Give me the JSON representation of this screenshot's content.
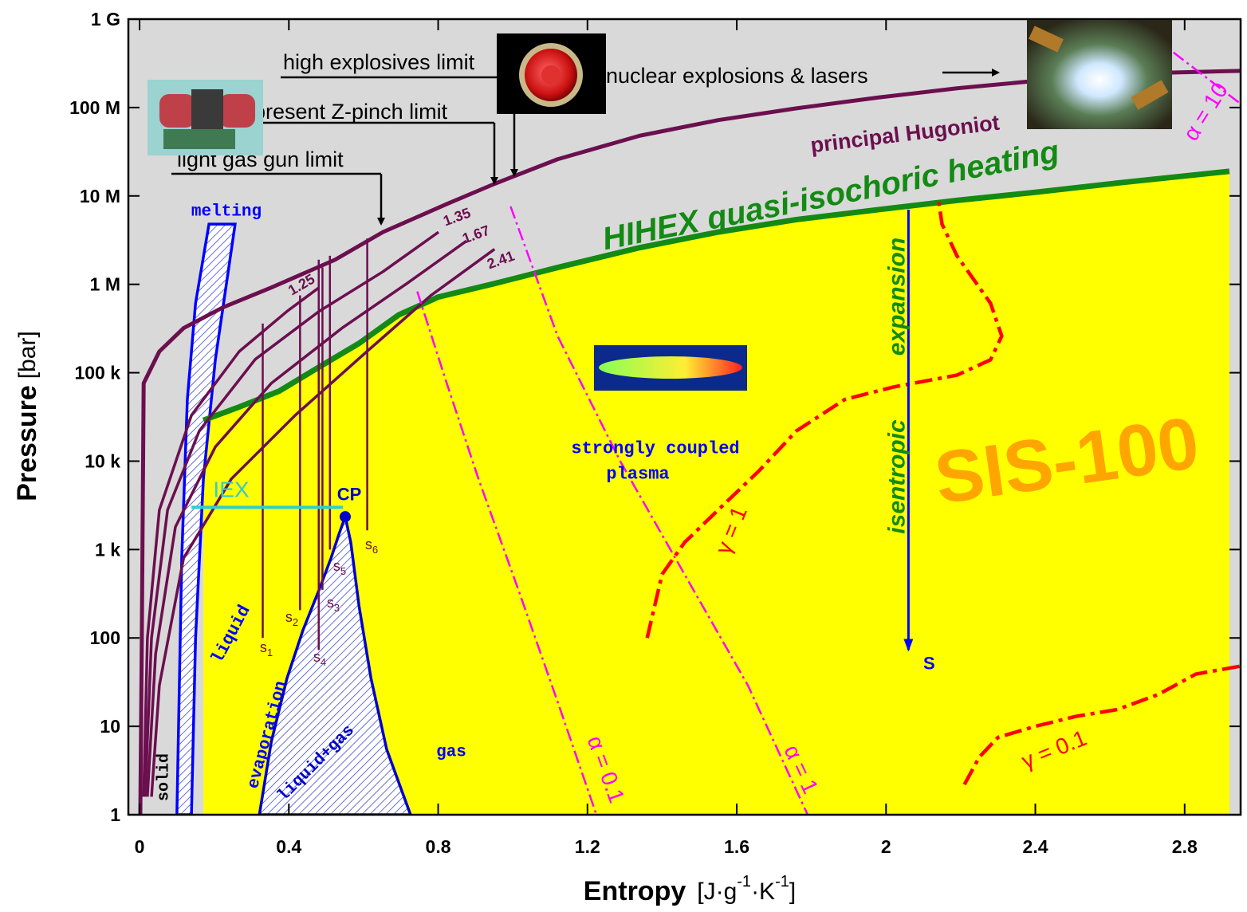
{
  "chart_data": {
    "type": "line",
    "x_label": [
      "Entropy",
      "[J·g",
      "-1",
      "·K",
      "-1",
      "]"
    ],
    "y_label": [
      "Pressure",
      "[bar]"
    ],
    "xlim": [
      -0.03,
      2.95
    ],
    "ylim": [
      1,
      1000000000
    ],
    "log_y": true,
    "xticks": [
      0,
      0.4,
      0.8,
      1.2,
      1.6,
      2,
      2.4,
      2.8
    ],
    "yticks": [
      1,
      10,
      100,
      {
        "value": 1000,
        "label": "1 k"
      },
      {
        "value": 10000,
        "label": "10 k"
      },
      {
        "value": 100000,
        "label": "100 k"
      },
      {
        "value": 1000000,
        "label": "1 M"
      },
      {
        "value": 10000000,
        "label": "10 M"
      },
      {
        "value": 100000000,
        "label": "100 M"
      },
      {
        "value": 1000000000,
        "label": "1 G"
      }
    ],
    "background": "#d9d9d9",
    "heating_region_color": "#ffff00",
    "series": [
      {
        "name": "principal Hugoniot",
        "color": "#6b0f4f",
        "x": [
          0.002,
          0.006,
          0.011,
          0.053,
          0.118,
          0.224,
          0.353,
          0.524,
          0.652,
          0.823,
          0.951,
          1.12,
          1.34,
          1.55,
          1.76,
          1.98,
          2.19,
          2.4,
          2.62,
          2.95
        ],
        "y": [
          1,
          100,
          76000,
          174000,
          320000,
          550000,
          920000,
          1900000,
          3900000,
          8100000,
          13700000,
          26000000,
          48000000,
          72000000,
          98000000,
          130000000,
          165000000,
          200000000,
          240000000,
          260000000
        ]
      },
      {
        "name": "HIHEX quasi-isochoric heating",
        "color": "#138a13",
        "x": [
          0.171,
          0.267,
          0.374,
          0.481,
          0.588,
          0.694,
          0.801,
          0.951,
          1.12,
          1.34,
          1.55,
          1.76,
          1.98,
          2.19,
          2.4,
          2.62,
          2.92
        ],
        "y": [
          29000,
          41000,
          62000,
          116000,
          215000,
          450000,
          720000,
          1020000,
          1550000,
          2600000,
          3900000,
          5400000,
          7000000,
          8900000,
          11000000,
          14000000,
          19000000
        ]
      },
      {
        "name": "1.25",
        "color": "#6b0f4f",
        "x": [
          0.011,
          0.021,
          0.053,
          0.139,
          0.267,
          0.395,
          0.481
        ],
        "y": [
          1.6,
          100,
          2800,
          33000,
          174000,
          495000,
          920000
        ]
      },
      {
        "name": "1.35",
        "color": "#6b0f4f",
        "x": [
          0.015,
          0.032,
          0.075,
          0.16,
          0.31,
          0.481,
          0.652,
          0.801
        ],
        "y": [
          1.6,
          100,
          2800,
          22000,
          142000,
          495000,
          1390000,
          3900000
        ]
      },
      {
        "name": "1.67",
        "color": "#6b0f4f",
        "x": [
          0.021,
          0.043,
          0.096,
          0.203,
          0.353,
          0.545,
          0.716,
          0.876
        ],
        "y": [
          1.6,
          66,
          1800,
          14500,
          76000,
          326000,
          1020000,
          3100000
        ]
      },
      {
        "name": "2.41",
        "color": "#6b0f4f",
        "x": [
          0.032,
          0.053,
          0.118,
          0.246,
          0.417,
          0.609,
          0.78,
          0.951
        ],
        "y": [
          1.6,
          29,
          800,
          6300,
          33000,
          174000,
          745000,
          2500000
        ]
      },
      {
        "name": "α = 0.1",
        "color": "#ff00ff",
        "dash": true,
        "x": [
          0.744,
          0.823,
          0.908,
          1.015,
          1.12,
          1.224
        ],
        "y": [
          830000,
          76000,
          6300,
          350,
          19,
          1
        ]
      },
      {
        "name": "α = 1",
        "color": "#ff00ff",
        "dash": true,
        "x": [
          0.994,
          1.12,
          1.29,
          1.46,
          1.63,
          1.79
        ],
        "y": [
          7600000,
          260000,
          9600,
          525,
          29,
          1
        ]
      },
      {
        "name": "α = 10",
        "color": "#ff00ff",
        "dash": true,
        "x": [
          2.77,
          2.95
        ],
        "y": [
          420000000,
          110000000
        ]
      },
      {
        "name": "γ = 1",
        "color": "#ff0000",
        "dash": true,
        "x": [
          1.36,
          1.4,
          1.46,
          1.55,
          1.66,
          1.76,
          1.89,
          2.02,
          2.19,
          2.28,
          2.31,
          2.28,
          2.19,
          2.15,
          2.14
        ],
        "y": [
          100,
          525,
          1200,
          2800,
          7800,
          22000,
          50000,
          69000,
          94000,
          140000,
          260000,
          610000,
          2100000,
          4800000,
          9400000
        ]
      },
      {
        "name": "γ = 0.1",
        "color": "#ff0000",
        "dash": true,
        "x": [
          2.21,
          2.25,
          2.3,
          2.4,
          2.51,
          2.62,
          2.73,
          2.83,
          2.95
        ],
        "y": [
          2.2,
          4.5,
          7.5,
          10,
          13,
          15.5,
          23,
          39,
          48
        ]
      }
    ],
    "isentropes": [
      {
        "label": {
          "main": "s",
          "sub": "1"
        },
        "color": "#6b0f4f",
        "x": 0.33,
        "y": [
          100,
          360000
        ]
      },
      {
        "label": {
          "main": "s",
          "sub": "2"
        },
        "color": "#6b0f4f",
        "x": 0.43,
        "y": [
          206,
          750000
        ]
      },
      {
        "label": {
          "main": "s",
          "sub": "3"
        },
        "color": "#6b0f4f",
        "x": 0.49,
        "y": [
          350,
          1550000
        ]
      },
      {
        "label": {
          "main": "s",
          "sub": "4"
        },
        "color": "#6b0f4f",
        "x": 0.48,
        "y": [
          73,
          1900000
        ]
      },
      {
        "label": {
          "main": "s",
          "sub": "5"
        },
        "color": "#6b0f4f",
        "x": 0.51,
        "y": [
          1000,
          2100000
        ]
      },
      {
        "label": {
          "main": "s",
          "sub": "6"
        },
        "color": "#6b0f4f",
        "x": 0.61,
        "y": [
          1650,
          3300000
        ]
      }
    ],
    "regions": [
      {
        "label": "melting",
        "color": "#0000ff",
        "x": [
          0.1,
          0.113,
          0.128,
          0.15,
          0.186,
          0.256,
          0.203,
          0.171,
          0.15,
          0.139
        ],
        "y": [
          1,
          800,
          50000,
          610000,
          4800000,
          4800000,
          140000,
          6300,
          100,
          1
        ]
      },
      {
        "label": "liquid+gas",
        "color": "#0000cc",
        "x": [
          0.321,
          0.353,
          0.395,
          0.438,
          0.481,
          0.513,
          0.534,
          0.551,
          0.566,
          0.588,
          0.62,
          0.662,
          0.726
        ],
        "y": [
          1,
          6.7,
          35,
          123,
          350,
          800,
          1480,
          2350,
          1200,
          230,
          35,
          5.5,
          1
        ]
      }
    ],
    "critical_point": {
      "label": "CP",
      "color": "#0000cc",
      "x": 0.551,
      "y": 2350
    },
    "iex": {
      "label": "IEX",
      "color": "#33cccc",
      "x": [
        0.139,
        0.545
      ],
      "y": [
        3000,
        3000
      ]
    },
    "expansion_arrow": {
      "label": "S",
      "color": "#0000ff",
      "x": 2.06,
      "y": [
        7000000,
        73
      ]
    },
    "annotations": [
      "high explosives limit",
      "present Z-pinch limit",
      "light gas gun limit",
      "nuclear explosions & lasers"
    ],
    "texts": {
      "solid": "solid",
      "liquid": "liquid",
      "evaporation": "evaporation",
      "gas": "gas",
      "plasma_1": "strongly coupled",
      "plasma_2": "plasma",
      "sis": "SIS-100",
      "isentropic": "isentropic",
      "expansion": "expansion"
    }
  }
}
